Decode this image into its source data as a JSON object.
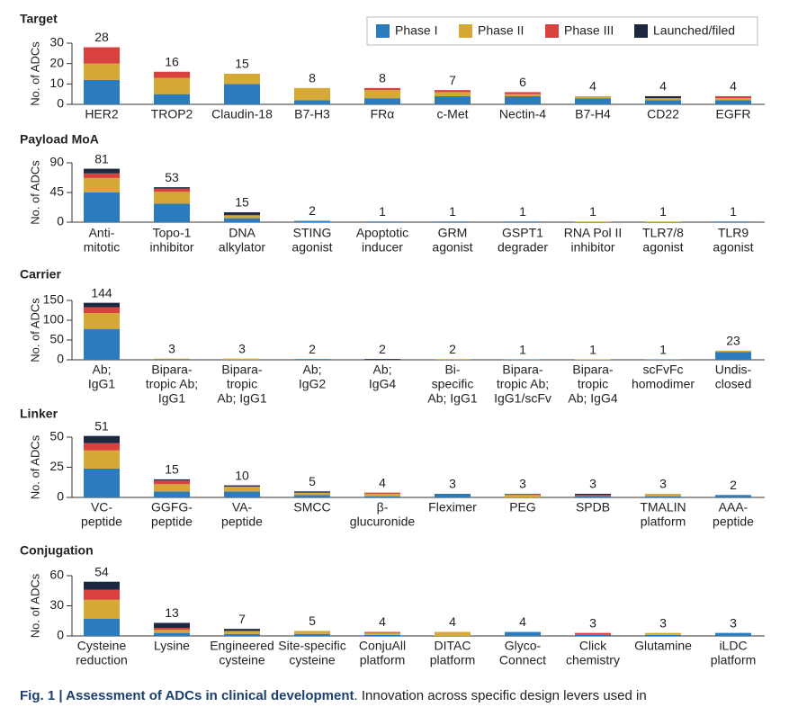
{
  "chart_data": [
    {
      "type": "bar",
      "stacked": true,
      "title": "Target",
      "ylabel": "No. of ADCs",
      "ylim": [
        0,
        30
      ],
      "yticks": [
        0,
        10,
        20,
        30
      ],
      "categories": [
        [
          "HER2"
        ],
        [
          "TROP2"
        ],
        [
          "Claudin-18"
        ],
        [
          "B7-H3"
        ],
        [
          "FRα"
        ],
        [
          "c-Met"
        ],
        [
          "Nectin-4"
        ],
        [
          "B7-H4"
        ],
        [
          "CD22"
        ],
        [
          "EGFR"
        ]
      ],
      "totals": [
        28,
        16,
        15,
        8,
        8,
        7,
        6,
        4,
        4,
        4
      ],
      "series": [
        {
          "name": "Phase I",
          "color": "#2b7bbf",
          "values": [
            12,
            5,
            10,
            2,
            3,
            4,
            4,
            3,
            2,
            2
          ]
        },
        {
          "name": "Phase II",
          "color": "#d6a834",
          "values": [
            8,
            8,
            5,
            6,
            4,
            2,
            1,
            1,
            1,
            1
          ]
        },
        {
          "name": "Phase III",
          "color": "#d9413f",
          "values": [
            8,
            3,
            0,
            0,
            1,
            1,
            1,
            0,
            0,
            1
          ]
        },
        {
          "name": "Launched/filed",
          "color": "#1b2840",
          "values": [
            0,
            0,
            0,
            0,
            0,
            0,
            0,
            0,
            1,
            0
          ]
        }
      ]
    },
    {
      "type": "bar",
      "stacked": true,
      "title": "Payload MoA",
      "ylabel": "No. of ADCs",
      "ylim": [
        0,
        90
      ],
      "yticks": [
        0,
        45,
        90
      ],
      "categories": [
        [
          "Anti-",
          "mitotic"
        ],
        [
          "Topo-1",
          "inhibitor"
        ],
        [
          "DNA",
          "alkylator"
        ],
        [
          "STING",
          "agonist"
        ],
        [
          "Apoptotic",
          "inducer"
        ],
        [
          "GRM",
          "agonist"
        ],
        [
          "GSPT1",
          "degrader"
        ],
        [
          "RNA Pol II",
          "inhibitor"
        ],
        [
          "TLR7/8",
          "agonist"
        ],
        [
          "TLR9",
          "agonist"
        ]
      ],
      "totals": [
        81,
        53,
        15,
        2,
        1,
        1,
        1,
        1,
        1,
        1
      ],
      "series": [
        {
          "name": "Phase I",
          "color": "#2b7bbf",
          "values": [
            45,
            28,
            6,
            2,
            1,
            1,
            1,
            0,
            0,
            1
          ]
        },
        {
          "name": "Phase II",
          "color": "#d6a834",
          "values": [
            22,
            18,
            4,
            0,
            0,
            0,
            0,
            1,
            1,
            0
          ]
        },
        {
          "name": "Phase III",
          "color": "#d9413f",
          "values": [
            7,
            5,
            1,
            0,
            0,
            0,
            0,
            0,
            0,
            0
          ]
        },
        {
          "name": "Launched/filed",
          "color": "#1b2840",
          "values": [
            7,
            2,
            4,
            0,
            0,
            0,
            0,
            0,
            0,
            0
          ]
        }
      ]
    },
    {
      "type": "bar",
      "stacked": true,
      "title": "Carrier",
      "ylabel": "No. of ADCs",
      "ylim": [
        0,
        150
      ],
      "yticks": [
        0,
        50,
        100,
        150
      ],
      "categories": [
        [
          "Ab;",
          "IgG1"
        ],
        [
          "Bipara-",
          "tropic Ab;",
          "IgG1"
        ],
        [
          "Bipara-",
          "tropic",
          "Ab; IgG1"
        ],
        [
          "Ab;",
          "IgG2"
        ],
        [
          "Ab;",
          "IgG4"
        ],
        [
          "Bi-",
          "specific",
          "Ab; IgG1"
        ],
        [
          "Bipara-",
          "tropic Ab;",
          "IgG1/scFv"
        ],
        [
          "Bipara-",
          "tropic",
          "Ab; IgG4"
        ],
        [
          "scFvFc",
          "homodimer"
        ],
        [
          "Undis-",
          "closed"
        ]
      ],
      "totals": [
        144,
        3,
        3,
        2,
        2,
        2,
        1,
        1,
        1,
        23
      ],
      "series": [
        {
          "name": "Phase I",
          "color": "#2b7bbf",
          "values": [
            78,
            1,
            0,
            2,
            0,
            0,
            1,
            0,
            1,
            20
          ]
        },
        {
          "name": "Phase II",
          "color": "#d6a834",
          "values": [
            40,
            2,
            3,
            0,
            0,
            2,
            0,
            1,
            0,
            3
          ]
        },
        {
          "name": "Phase III",
          "color": "#d9413f",
          "values": [
            15,
            0,
            0,
            0,
            0,
            0,
            0,
            0,
            0,
            0
          ]
        },
        {
          "name": "Launched/filed",
          "color": "#1b2840",
          "values": [
            11,
            0,
            0,
            0,
            2,
            0,
            0,
            0,
            0,
            0
          ]
        }
      ]
    },
    {
      "type": "bar",
      "stacked": true,
      "title": "Linker",
      "ylabel": "No. of ADCs",
      "ylim": [
        0,
        50
      ],
      "yticks": [
        0,
        25,
        50
      ],
      "categories": [
        [
          "VC-",
          "peptide"
        ],
        [
          "GGFG-",
          "peptide"
        ],
        [
          "VA-",
          "peptide"
        ],
        [
          "SMCC"
        ],
        [
          "β-",
          "glucuronide"
        ],
        [
          "Fleximer"
        ],
        [
          "PEG"
        ],
        [
          "SPDB"
        ],
        [
          "TMALIN",
          "platform"
        ],
        [
          "AAA-",
          "peptide"
        ]
      ],
      "totals": [
        51,
        15,
        10,
        5,
        4,
        3,
        3,
        3,
        3,
        2
      ],
      "series": [
        {
          "name": "Phase I",
          "color": "#2b7bbf",
          "values": [
            24,
            5,
            5,
            2,
            1,
            3,
            0,
            1,
            1,
            2
          ]
        },
        {
          "name": "Phase II",
          "color": "#d6a834",
          "values": [
            15,
            6,
            4,
            2,
            2,
            0,
            2,
            0,
            2,
            0
          ]
        },
        {
          "name": "Phase III",
          "color": "#d9413f",
          "values": [
            6,
            3,
            0,
            0,
            1,
            0,
            1,
            1,
            0,
            0
          ]
        },
        {
          "name": "Launched/filed",
          "color": "#1b2840",
          "values": [
            6,
            1,
            1,
            1,
            0,
            0,
            0,
            1,
            0,
            0
          ]
        }
      ]
    },
    {
      "type": "bar",
      "stacked": true,
      "title": "Conjugation",
      "ylabel": "No. of ADCs",
      "ylim": [
        0,
        60
      ],
      "yticks": [
        0,
        30,
        60
      ],
      "categories": [
        [
          "Cysteine",
          "reduction"
        ],
        [
          "Lysine"
        ],
        [
          "Engineered",
          "cysteine"
        ],
        [
          "Site-specific",
          "cysteine"
        ],
        [
          "ConjuAll",
          "platform"
        ],
        [
          "DITAC",
          "platform"
        ],
        [
          "Glyco-",
          "Connect"
        ],
        [
          "Click",
          "chemistry"
        ],
        [
          "Glutamine"
        ],
        [
          "iLDC",
          "platform"
        ]
      ],
      "totals": [
        54,
        13,
        7,
        5,
        4,
        4,
        4,
        3,
        3,
        3
      ],
      "series": [
        {
          "name": "Phase I",
          "color": "#2b7bbf",
          "values": [
            17,
            3,
            2,
            2,
            1,
            0,
            4,
            1,
            1,
            3
          ]
        },
        {
          "name": "Phase II",
          "color": "#d6a834",
          "values": [
            19,
            3,
            3,
            3,
            2,
            4,
            0,
            0,
            2,
            0
          ]
        },
        {
          "name": "Phase III",
          "color": "#d9413f",
          "values": [
            10,
            2,
            0,
            0,
            1,
            0,
            0,
            2,
            0,
            0
          ]
        },
        {
          "name": "Launched/filed",
          "color": "#1b2840",
          "values": [
            8,
            5,
            2,
            0,
            0,
            0,
            0,
            0,
            0,
            0
          ]
        }
      ]
    }
  ],
  "caption": {
    "label": "Fig. 1 | Assessment of ADCs in clinical development",
    "text": ". Innovation across specific design levers used in"
  }
}
